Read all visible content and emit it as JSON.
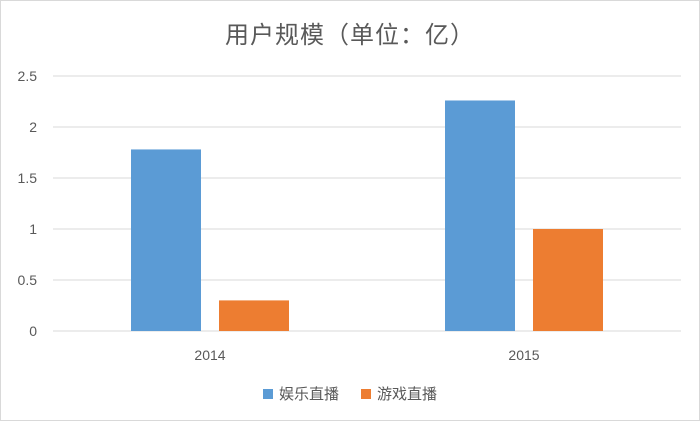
{
  "chart_data": {
    "type": "bar",
    "title": "用户规模（单位：亿）",
    "categories": [
      "2014",
      "2015"
    ],
    "series": [
      {
        "name": "娱乐直播",
        "color": "#5b9bd5",
        "values": [
          1.78,
          2.26
        ]
      },
      {
        "name": "游戏直播",
        "color": "#ed7d31",
        "values": [
          0.3,
          1.0
        ]
      }
    ],
    "ylim": [
      0,
      2.5
    ],
    "yticks": [
      "0",
      "0.5",
      "1",
      "1.5",
      "2",
      "2.5"
    ],
    "grid": true,
    "legend_position": "bottom",
    "xlabel": "",
    "ylabel": ""
  }
}
